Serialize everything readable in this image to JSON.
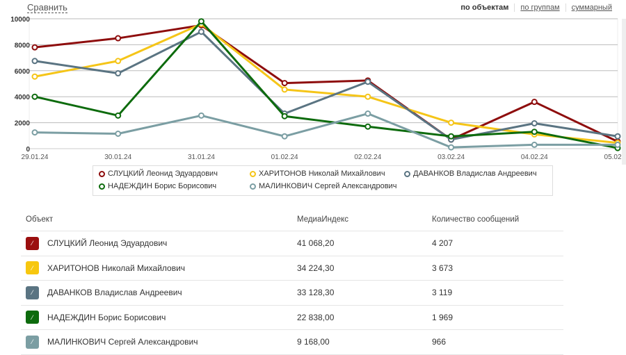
{
  "compare_label": "Сравнить",
  "modes": [
    "по объектам",
    "по группам",
    "суммарный"
  ],
  "chart_data": {
    "type": "line",
    "categories": [
      "29.01.24",
      "30.01.24",
      "31.01.24",
      "01.02.24",
      "02.02.24",
      "03.02.24",
      "04.02.24",
      "05.02.24"
    ],
    "yticks": [
      0,
      2000,
      4000,
      6000,
      8000,
      10000
    ],
    "ylim": [
      0,
      10000
    ],
    "grid": true,
    "legend_placement": "bottom",
    "series": [
      {
        "name": "СЛУЦКИЙ Леонид Эдуардович",
        "color": "#8e0d0d",
        "values": [
          7800,
          8500,
          9500,
          5050,
          5250,
          700,
          3600,
          550
        ]
      },
      {
        "name": "ХАРИТОНОВ Николай Михайлович",
        "color": "#f5c518",
        "values": [
          5550,
          6750,
          9600,
          4550,
          4000,
          2000,
          1100,
          450
        ]
      },
      {
        "name": "ДАВАНКОВ Владислав Андреевич",
        "color": "#5a7482",
        "values": [
          6750,
          5800,
          9000,
          2700,
          5150,
          700,
          1950,
          950
        ]
      },
      {
        "name": "НАДЕЖДИН Борис Борисович",
        "color": "#0d6b0d",
        "values": [
          4000,
          2550,
          9800,
          2500,
          1700,
          950,
          1300,
          50
        ]
      },
      {
        "name": "МАЛИНКОВИЧ Сергей Александрович",
        "color": "#7b9ea3",
        "values": [
          1250,
          1150,
          2550,
          950,
          2700,
          100,
          300,
          300
        ]
      }
    ]
  },
  "table": {
    "headers": [
      "Объект",
      "МедиаИндекс",
      "Количество сообщений"
    ],
    "rows": [
      {
        "name": "СЛУЦКИЙ Леонид Эдуардович",
        "index": "41 068,20",
        "count": "4 207",
        "color": "#9b0f0f"
      },
      {
        "name": "ХАРИТОНОВ Николай Михайлович",
        "index": "34 224,30",
        "count": "3 673",
        "color": "#f7c70f"
      },
      {
        "name": "ДАВАНКОВ Владислав Андреевич",
        "index": "33 128,30",
        "count": "3 119",
        "color": "#5a7482"
      },
      {
        "name": "НАДЕЖДИН Борис Борисович",
        "index": "22 838,00",
        "count": "1 969",
        "color": "#0d6b0d"
      },
      {
        "name": "МАЛИНКОВИЧ Сергей Александрович",
        "index": "9 168,00",
        "count": "966",
        "color": "#7b9ea3"
      }
    ]
  }
}
